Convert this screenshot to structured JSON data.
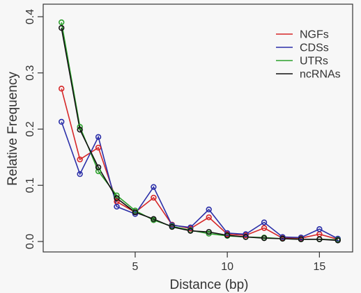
{
  "chart_data": {
    "type": "line",
    "xlabel": "Distance (bp)",
    "ylabel": "Relative Frequency",
    "xlim": [
      0.5,
      16.5
    ],
    "ylim": [
      0,
      0.4
    ],
    "xticks": [
      5,
      10,
      15
    ],
    "yticks": [
      0.0,
      0.1,
      0.2,
      0.3,
      0.4
    ],
    "xtick_labels": [
      "5",
      "10",
      "15"
    ],
    "ytick_labels": [
      "0.0",
      "0.1",
      "0.2",
      "0.3",
      "0.4"
    ],
    "grid": false,
    "legend_position": "top-right",
    "x": [
      1,
      2,
      3,
      4,
      5,
      6,
      7,
      8,
      9,
      10,
      11,
      12,
      13,
      14,
      15,
      16
    ],
    "series": [
      {
        "name": "NGFs",
        "color": "#d62728",
        "values": [
          0.272,
          0.146,
          0.167,
          0.071,
          0.052,
          0.078,
          0.03,
          0.023,
          0.043,
          0.013,
          0.011,
          0.024,
          0.006,
          0.006,
          0.013,
          0.004
        ]
      },
      {
        "name": "CDSs",
        "color": "#2b2fa8",
        "values": [
          0.213,
          0.12,
          0.186,
          0.062,
          0.049,
          0.097,
          0.029,
          0.025,
          0.057,
          0.015,
          0.013,
          0.034,
          0.008,
          0.007,
          0.022,
          0.005
        ]
      },
      {
        "name": "UTRs",
        "color": "#2ca02c",
        "values": [
          0.39,
          0.204,
          0.125,
          0.082,
          0.055,
          0.038,
          0.027,
          0.02,
          0.014,
          0.01,
          0.008,
          0.007,
          0.005,
          0.004,
          0.004,
          0.003
        ]
      },
      {
        "name": "ncRNAs",
        "color": "#111111",
        "values": [
          0.38,
          0.199,
          0.132,
          0.077,
          0.052,
          0.04,
          0.026,
          0.019,
          0.017,
          0.011,
          0.008,
          0.006,
          0.005,
          0.004,
          0.004,
          0.002
        ]
      }
    ]
  }
}
